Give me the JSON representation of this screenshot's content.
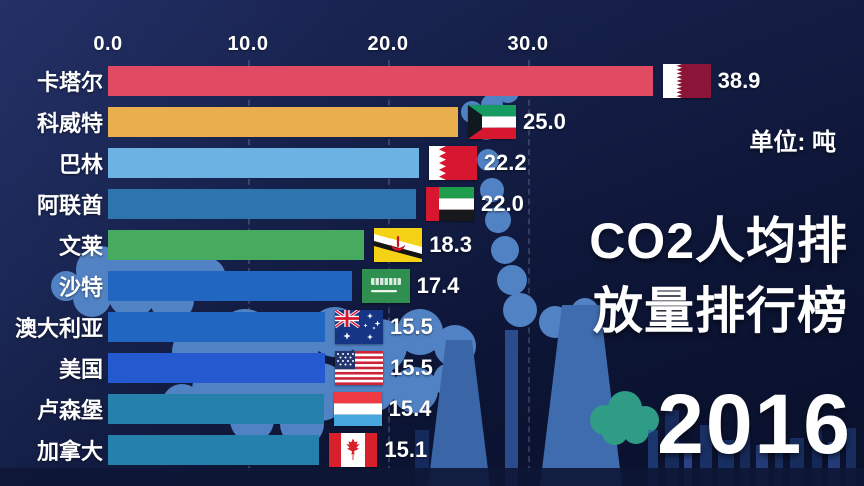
{
  "overlay": {
    "unit_label": "单位: 吨",
    "title_line1": "CO2人均排",
    "title_line2": "放量排行榜",
    "year": "2016"
  },
  "axis": {
    "ticks": [
      "0.0",
      "10.0",
      "20.0",
      "30.0"
    ],
    "tick_values": [
      0,
      10,
      20,
      30
    ]
  },
  "chart_data": {
    "type": "bar",
    "orientation": "horizontal",
    "title": "CO2人均排放量排行榜",
    "unit": "吨",
    "year": 2016,
    "xlim": [
      0,
      40
    ],
    "grid": "dashed-vertical",
    "categories": [
      "卡塔尔",
      "科威特",
      "巴林",
      "阿联酋",
      "文莱",
      "沙特",
      "澳大利亚",
      "美国",
      "卢森堡",
      "加拿大"
    ],
    "values": [
      38.9,
      25.0,
      22.2,
      22.0,
      18.3,
      17.4,
      15.5,
      15.5,
      15.4,
      15.1
    ],
    "value_labels": [
      "38.9",
      "25.0",
      "22.2",
      "22.0",
      "18.3",
      "17.4",
      "15.5",
      "15.5",
      "15.4",
      "15.1"
    ],
    "bar_colors": [
      "#e04a63",
      "#e9af4e",
      "#6cb2e2",
      "#2e74ad",
      "#46ab5e",
      "#2167c2",
      "#2167c2",
      "#2459d0",
      "#2580ab",
      "#2580ab"
    ],
    "flag_icons": [
      "flag-qatar",
      "flag-kuwait",
      "flag-bahrain",
      "flag-uae",
      "flag-brunei",
      "flag-saudi-arabia",
      "flag-australia",
      "flag-usa",
      "flag-luxembourg",
      "flag-canada"
    ]
  },
  "rows": [
    {
      "label": "卡塔尔",
      "value": "38.9"
    },
    {
      "label": "科威特",
      "value": "25.0"
    },
    {
      "label": "巴林",
      "value": "22.2"
    },
    {
      "label": "阿联酋",
      "value": "22.0"
    },
    {
      "label": "文莱",
      "value": "18.3"
    },
    {
      "label": "沙特",
      "value": "17.4"
    },
    {
      "label": "澳大利亚",
      "value": "15.5"
    },
    {
      "label": "美国",
      "value": "15.5"
    },
    {
      "label": "卢森堡",
      "value": "15.4"
    },
    {
      "label": "加拿大",
      "value": "15.1"
    }
  ],
  "colors": {
    "background_top": "#1a2452",
    "background_bottom": "#0a112c",
    "smoke": "#5182c3",
    "tower": "#3a66a8",
    "bush": "#2f9c85",
    "text": "#ffffff"
  }
}
